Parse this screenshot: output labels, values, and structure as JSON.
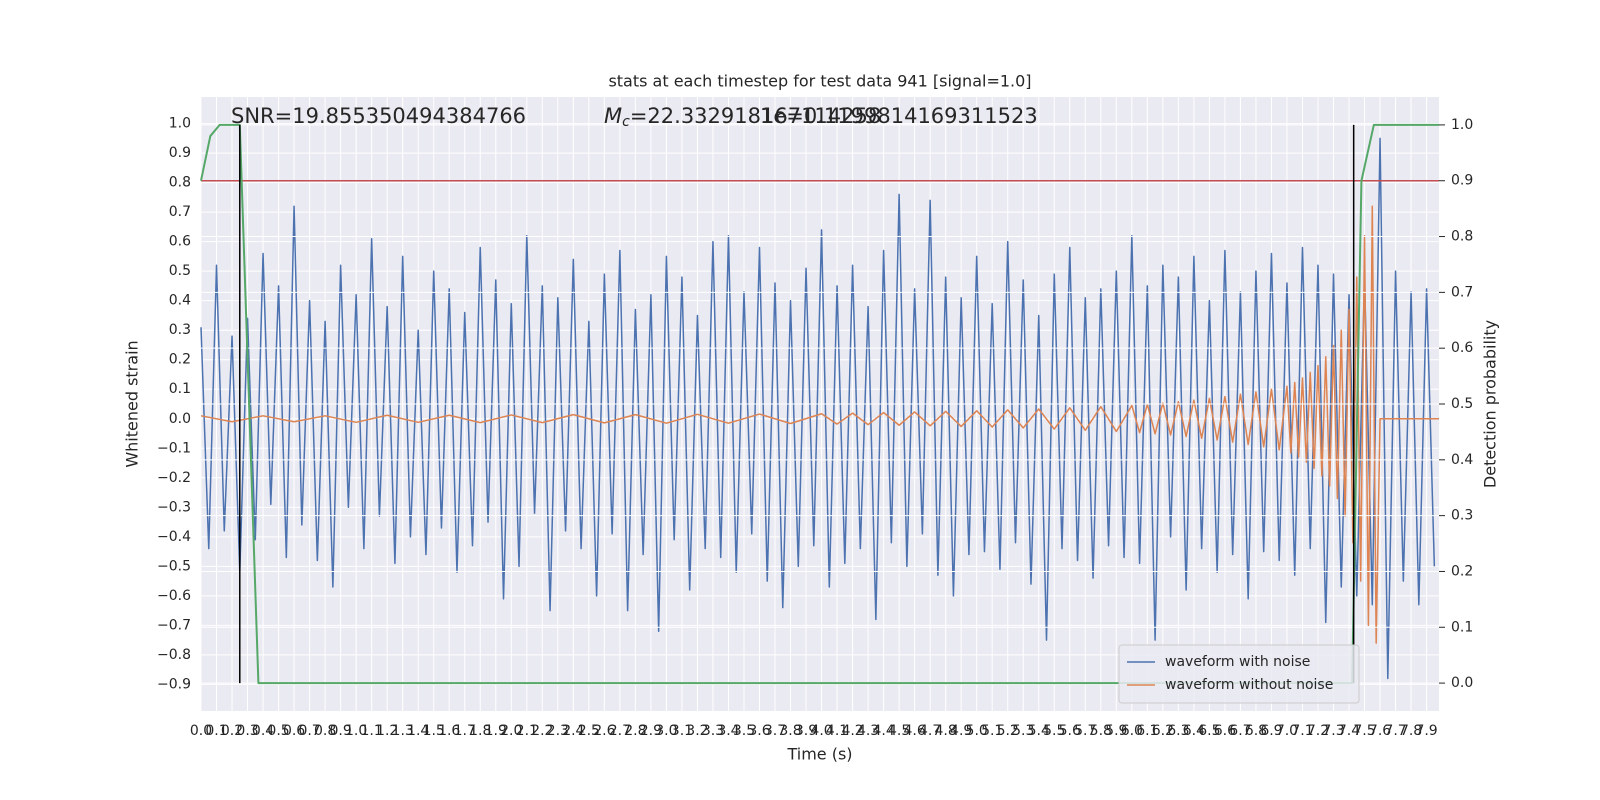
{
  "chart_data": {
    "type": "line",
    "title": "stats at each timestep for test data 941 [signal=1.0]",
    "xlabel": "Time (s)",
    "ylabel": "Whitened strain",
    "y2label": "Detection probability",
    "annotations": [
      {
        "text": "SNR=19.855350494384766"
      },
      {
        "symbol": "M",
        "subscript": "c",
        "text": "=22.332918167114258"
      },
      {
        "text": "1e=0.1199814169311523"
      }
    ],
    "xlim": [
      0,
      7.98
    ],
    "ylim": [
      -0.99,
      1.09
    ],
    "y2lim": [
      -0.05,
      1.05
    ],
    "grid": true,
    "legend": "lower right",
    "xticks": [
      {
        "value": 0,
        "label": "0.0"
      },
      0.1,
      0.2,
      0.3,
      0.4,
      0.5,
      0.6,
      0.7,
      0.8,
      0.9,
      {
        "value": 1,
        "label": "1.0"
      },
      1.1,
      1.2,
      1.3,
      1.4,
      1.5,
      1.6,
      1.7,
      1.8,
      1.9,
      {
        "value": 2,
        "label": "2.0"
      },
      2.1,
      2.2,
      2.3,
      2.4,
      2.5,
      2.6,
      2.7,
      2.8,
      2.9,
      {
        "value": 3,
        "label": "3.0"
      },
      3.1,
      3.2,
      3.3,
      3.4,
      3.5,
      3.6,
      3.7,
      3.8,
      3.9,
      {
        "value": 4,
        "label": "4.0"
      },
      4.1,
      4.2,
      4.3,
      4.4,
      4.5,
      4.6,
      4.7,
      4.8,
      4.9,
      {
        "value": 5,
        "label": "5.0"
      },
      5.1,
      5.2,
      5.3,
      5.4,
      5.5,
      5.6,
      5.7,
      5.8,
      5.9,
      {
        "value": 6,
        "label": "6.0"
      },
      6.1,
      6.2,
      6.3,
      6.4,
      6.5,
      6.6,
      6.7,
      6.8,
      6.9,
      {
        "value": 7,
        "label": "7.0"
      },
      7.1,
      7.2,
      7.3,
      7.4,
      7.5,
      7.6,
      7.7,
      7.8,
      7.9
    ],
    "yticks": [
      {
        "value": -0.9,
        "label": "−0.9"
      },
      {
        "value": -0.8,
        "label": "−0.8"
      },
      {
        "value": -0.7,
        "label": "−0.7"
      },
      {
        "value": -0.6,
        "label": "−0.6"
      },
      {
        "value": -0.5,
        "label": "−0.5"
      },
      {
        "value": -0.4,
        "label": "−0.4"
      },
      {
        "value": -0.3,
        "label": "−0.3"
      },
      {
        "value": -0.2,
        "label": "−0.2"
      },
      {
        "value": -0.1,
        "label": "−0.1"
      },
      {
        "value": 0,
        "label": "0.0"
      },
      0.1,
      0.2,
      0.3,
      0.4,
      0.5,
      0.6,
      0.7,
      0.8,
      0.9,
      {
        "value": 1,
        "label": "1.0"
      }
    ],
    "y2ticks": [
      {
        "value": 0,
        "label": "0.0"
      },
      0.1,
      0.2,
      0.3,
      0.4,
      0.5,
      0.6,
      0.7,
      0.8,
      0.9,
      {
        "value": 1,
        "label": "1.0"
      }
    ],
    "series": [
      {
        "name": "waveform with noise",
        "color": "#4c72b0",
        "x": [
          0,
          0.05,
          0.1,
          0.15,
          0.2,
          0.25,
          0.3,
          0.35,
          0.4,
          0.45,
          0.5,
          0.55,
          0.6,
          0.65,
          0.7,
          0.75,
          0.8,
          0.85,
          0.9,
          0.95,
          1,
          1.05,
          1.1,
          1.15,
          1.2,
          1.25,
          1.3,
          1.35,
          1.4,
          1.45,
          1.5,
          1.55,
          1.6,
          1.65,
          1.7,
          1.75,
          1.8,
          1.85,
          1.9,
          1.95,
          2,
          2.05,
          2.1,
          2.15,
          2.2,
          2.25,
          2.3,
          2.35,
          2.4,
          2.45,
          2.5,
          2.55,
          2.6,
          2.65,
          2.7,
          2.75,
          2.8,
          2.85,
          2.9,
          2.95,
          3,
          3.05,
          3.1,
          3.15,
          3.2,
          3.25,
          3.3,
          3.35,
          3.4,
          3.45,
          3.5,
          3.55,
          3.6,
          3.65,
          3.7,
          3.75,
          3.8,
          3.85,
          3.9,
          3.95,
          4,
          4.05,
          4.1,
          4.15,
          4.2,
          4.25,
          4.3,
          4.35,
          4.4,
          4.45,
          4.5,
          4.55,
          4.6,
          4.65,
          4.7,
          4.75,
          4.8,
          4.85,
          4.9,
          4.95,
          5,
          5.05,
          5.1,
          5.15,
          5.2,
          5.25,
          5.3,
          5.35,
          5.4,
          5.45,
          5.5,
          5.55,
          5.6,
          5.65,
          5.7,
          5.75,
          5.8,
          5.85,
          5.9,
          5.95,
          6,
          6.05,
          6.1,
          6.15,
          6.2,
          6.25,
          6.3,
          6.35,
          6.4,
          6.45,
          6.5,
          6.55,
          6.6,
          6.65,
          6.7,
          6.75,
          6.8,
          6.85,
          6.9,
          6.95,
          7,
          7.05,
          7.1,
          7.15,
          7.2,
          7.25,
          7.3,
          7.35,
          7.4,
          7.45,
          7.5,
          7.55,
          7.6,
          7.65,
          7.7,
          7.75,
          7.8,
          7.85,
          7.9,
          7.95
        ],
        "values": [
          0.31,
          -0.44,
          0.52,
          -0.38,
          0.28,
          -0.52,
          0.34,
          -0.41,
          0.56,
          -0.29,
          0.45,
          -0.47,
          0.72,
          -0.36,
          0.4,
          -0.48,
          0.33,
          -0.57,
          0.52,
          -0.3,
          0.42,
          -0.44,
          0.61,
          -0.33,
          0.38,
          -0.49,
          0.55,
          -0.4,
          0.3,
          -0.46,
          0.5,
          -0.37,
          0.44,
          -0.52,
          0.36,
          -0.43,
          0.58,
          -0.35,
          0.47,
          -0.61,
          0.39,
          -0.5,
          0.62,
          -0.32,
          0.45,
          -0.65,
          0.41,
          -0.38,
          0.54,
          -0.44,
          0.33,
          -0.6,
          0.49,
          -0.39,
          0.57,
          -0.65,
          0.37,
          -0.46,
          0.42,
          -0.72,
          0.55,
          -0.41,
          0.48,
          -0.58,
          0.35,
          -0.44,
          0.6,
          -0.47,
          0.62,
          -0.52,
          0.43,
          -0.39,
          0.58,
          -0.55,
          0.46,
          -0.64,
          0.4,
          -0.5,
          0.51,
          -0.43,
          0.64,
          -0.57,
          0.45,
          -0.49,
          0.52,
          -0.44,
          0.38,
          -0.68,
          0.57,
          -0.42,
          0.76,
          -0.5,
          0.44,
          -0.39,
          0.74,
          -0.53,
          0.48,
          -0.6,
          0.41,
          -0.46,
          0.55,
          -0.45,
          0.39,
          -0.51,
          0.6,
          -0.42,
          0.47,
          -0.56,
          0.35,
          -0.75,
          0.49,
          -0.44,
          0.58,
          -0.48,
          0.41,
          -0.54,
          0.44,
          -0.43,
          0.5,
          -0.47,
          0.62,
          -0.49,
          0.45,
          -0.75,
          0.52,
          -0.4,
          0.48,
          -0.58,
          0.55,
          -0.44,
          0.4,
          -0.52,
          0.57,
          -0.46,
          0.43,
          -0.61,
          0.5,
          -0.45,
          0.56,
          -0.48,
          0.46,
          -0.53,
          0.58,
          -0.44,
          0.52,
          -0.69,
          0.49,
          -0.57,
          0.42,
          -0.6,
          0.48,
          -0.63,
          0.95,
          -0.88,
          0.5,
          -0.55,
          0.43,
          -0.63,
          0.44,
          -0.5
        ]
      },
      {
        "name": "waveform without noise",
        "color": "#dd8452",
        "x": [
          0,
          0.2,
          0.4,
          0.6,
          0.8,
          1,
          1.2,
          1.4,
          1.6,
          1.8,
          2,
          2.2,
          2.4,
          2.6,
          2.8,
          3,
          3.2,
          3.4,
          3.6,
          3.8,
          4,
          4.1,
          4.2,
          4.3,
          4.4,
          4.5,
          4.6,
          4.7,
          4.8,
          4.9,
          5,
          5.1,
          5.2,
          5.3,
          5.4,
          5.5,
          5.6,
          5.7,
          5.8,
          5.9,
          6,
          6.05,
          6.1,
          6.15,
          6.2,
          6.25,
          6.3,
          6.35,
          6.4,
          6.45,
          6.5,
          6.55,
          6.6,
          6.65,
          6.7,
          6.75,
          6.8,
          6.85,
          6.9,
          6.95,
          7,
          7.025,
          7.05,
          7.075,
          7.1,
          7.125,
          7.15,
          7.175,
          7.2,
          7.225,
          7.25,
          7.275,
          7.3,
          7.325,
          7.35,
          7.375,
          7.4,
          7.425,
          7.45,
          7.475,
          7.5,
          7.525,
          7.55,
          7.575,
          7.6,
          7.98
        ],
        "values": [
          0.01,
          -0.01,
          0.01,
          -0.01,
          0.01,
          -0.012,
          0.012,
          -0.012,
          0.012,
          -0.013,
          0.013,
          -0.013,
          0.014,
          -0.014,
          0.014,
          -0.015,
          0.015,
          -0.015,
          0.016,
          -0.016,
          0.017,
          -0.018,
          0.019,
          -0.02,
          0.021,
          -0.022,
          0.023,
          -0.024,
          0.025,
          -0.026,
          0.027,
          -0.028,
          0.03,
          -0.031,
          0.033,
          -0.035,
          0.037,
          -0.039,
          0.041,
          -0.043,
          0.045,
          -0.047,
          0.049,
          -0.051,
          0.053,
          -0.055,
          0.058,
          -0.06,
          0.063,
          -0.066,
          0.069,
          -0.072,
          0.075,
          -0.079,
          0.083,
          -0.087,
          0.091,
          -0.095,
          0.1,
          -0.105,
          0.11,
          -0.116,
          0.123,
          -0.13,
          0.138,
          -0.147,
          0.157,
          -0.168,
          0.18,
          -0.194,
          0.21,
          -0.228,
          0.248,
          -0.27,
          0.3,
          -0.33,
          0.37,
          -0.42,
          0.48,
          -0.55,
          0.62,
          -0.7,
          0.72,
          -0.76,
          0,
          0
        ]
      },
      {
        "color": "#55a868",
        "axis": "y2",
        "x": [
          0,
          0.06,
          0.12,
          0.25,
          0.37,
          7.42,
          7.48,
          7.56,
          7.98
        ],
        "values": [
          0.9,
          0.98,
          1.0,
          1.0,
          0.0,
          0.0,
          0.9,
          1.0,
          1.0
        ]
      }
    ],
    "hlines": {
      "y": [
        0.9
      ],
      "axis": "y2",
      "color": "#c44e52"
    },
    "vlines": {
      "x": [
        0.25,
        7.43
      ],
      "ymin": 0,
      "ymax": 1,
      "axis": "y2",
      "color": "#000000"
    }
  }
}
